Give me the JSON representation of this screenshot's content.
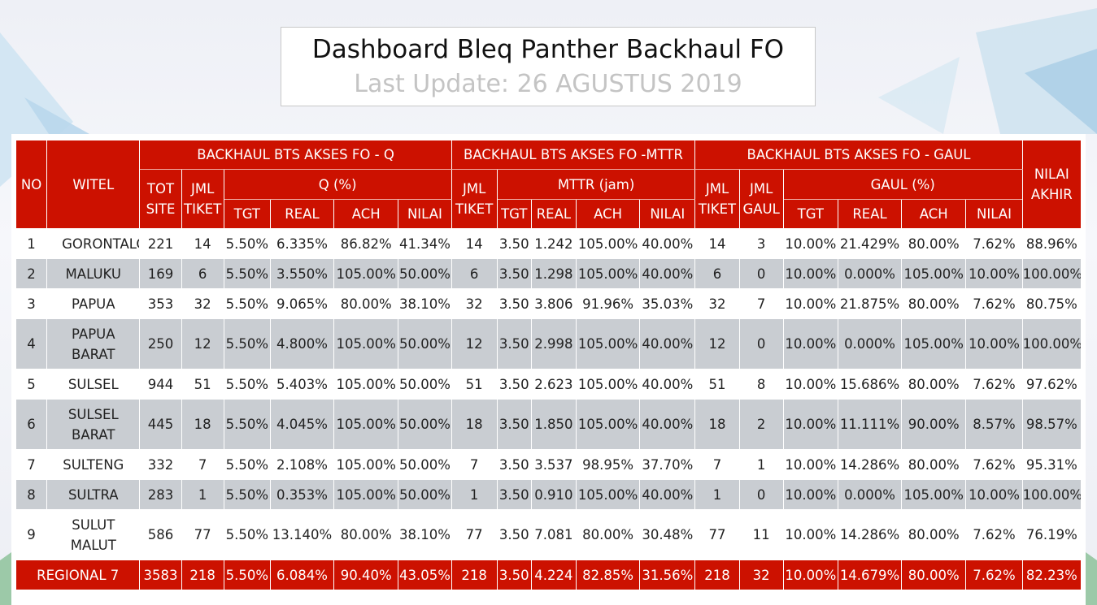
{
  "header": {
    "title": "Dashboard Bleq Panther Backhaul FO",
    "subtitle": "Last Update: 26 AGUSTUS 2019"
  },
  "colors": {
    "header_red": "#cc1100",
    "stripe_gray": "#c9cdd2"
  },
  "table": {
    "headers": {
      "no": "NO",
      "witel": "WITEL",
      "group_q": "BACKHAUL BTS AKSES FO - Q",
      "group_mttr": "BACKHAUL BTS AKSES FO -MTTR",
      "group_gaul": "BACKHAUL BTS AKSES FO - GAUL",
      "nilai_akhir": "NILAI AKHIR",
      "tot_site": "TOT SITE",
      "jml_tiket": "JML TIKET",
      "q_pct": "Q (%)",
      "mttr_jam": "MTTR (jam)",
      "jml_gaul": "JML GAUL",
      "gaul_pct": "GAUL (%)",
      "tgt": "TGT",
      "real": "REAL",
      "ach": "ACH",
      "nilai": "NILAI"
    },
    "rows": [
      [
        "1",
        "GORONTALO",
        "221",
        "14",
        "5.50%",
        "6.335%",
        "86.82%",
        "41.34%",
        "14",
        "3.50",
        "1.242",
        "105.00%",
        "40.00%",
        "14",
        "3",
        "10.00%",
        "21.429%",
        "80.00%",
        "7.62%",
        "88.96%"
      ],
      [
        "2",
        "MALUKU",
        "169",
        "6",
        "5.50%",
        "3.550%",
        "105.00%",
        "50.00%",
        "6",
        "3.50",
        "1.298",
        "105.00%",
        "40.00%",
        "6",
        "0",
        "10.00%",
        "0.000%",
        "105.00%",
        "10.00%",
        "100.00%"
      ],
      [
        "3",
        "PAPUA",
        "353",
        "32",
        "5.50%",
        "9.065%",
        "80.00%",
        "38.10%",
        "32",
        "3.50",
        "3.806",
        "91.96%",
        "35.03%",
        "32",
        "7",
        "10.00%",
        "21.875%",
        "80.00%",
        "7.62%",
        "80.75%"
      ],
      [
        "4",
        "PAPUA BARAT",
        "250",
        "12",
        "5.50%",
        "4.800%",
        "105.00%",
        "50.00%",
        "12",
        "3.50",
        "2.998",
        "105.00%",
        "40.00%",
        "12",
        "0",
        "10.00%",
        "0.000%",
        "105.00%",
        "10.00%",
        "100.00%"
      ],
      [
        "5",
        "SULSEL",
        "944",
        "51",
        "5.50%",
        "5.403%",
        "105.00%",
        "50.00%",
        "51",
        "3.50",
        "2.623",
        "105.00%",
        "40.00%",
        "51",
        "8",
        "10.00%",
        "15.686%",
        "80.00%",
        "7.62%",
        "97.62%"
      ],
      [
        "6",
        "SULSEL BARAT",
        "445",
        "18",
        "5.50%",
        "4.045%",
        "105.00%",
        "50.00%",
        "18",
        "3.50",
        "1.850",
        "105.00%",
        "40.00%",
        "18",
        "2",
        "10.00%",
        "11.111%",
        "90.00%",
        "8.57%",
        "98.57%"
      ],
      [
        "7",
        "SULTENG",
        "332",
        "7",
        "5.50%",
        "2.108%",
        "105.00%",
        "50.00%",
        "7",
        "3.50",
        "3.537",
        "98.95%",
        "37.70%",
        "7",
        "1",
        "10.00%",
        "14.286%",
        "80.00%",
        "7.62%",
        "95.31%"
      ],
      [
        "8",
        "SULTRA",
        "283",
        "1",
        "5.50%",
        "0.353%",
        "105.00%",
        "50.00%",
        "1",
        "3.50",
        "0.910",
        "105.00%",
        "40.00%",
        "1",
        "0",
        "10.00%",
        "0.000%",
        "105.00%",
        "10.00%",
        "100.00%"
      ],
      [
        "9",
        "SULUT MALUT",
        "586",
        "77",
        "5.50%",
        "13.140%",
        "80.00%",
        "38.10%",
        "77",
        "3.50",
        "7.081",
        "80.00%",
        "30.48%",
        "77",
        "11",
        "10.00%",
        "14.286%",
        "80.00%",
        "7.62%",
        "76.19%"
      ]
    ],
    "total": [
      "REGIONAL 7",
      "3583",
      "218",
      "5.50%",
      "6.084%",
      "90.40%",
      "43.05%",
      "218",
      "3.50",
      "4.224",
      "82.85%",
      "31.56%",
      "218",
      "32",
      "10.00%",
      "14.679%",
      "80.00%",
      "7.62%",
      "82.23%"
    ]
  }
}
